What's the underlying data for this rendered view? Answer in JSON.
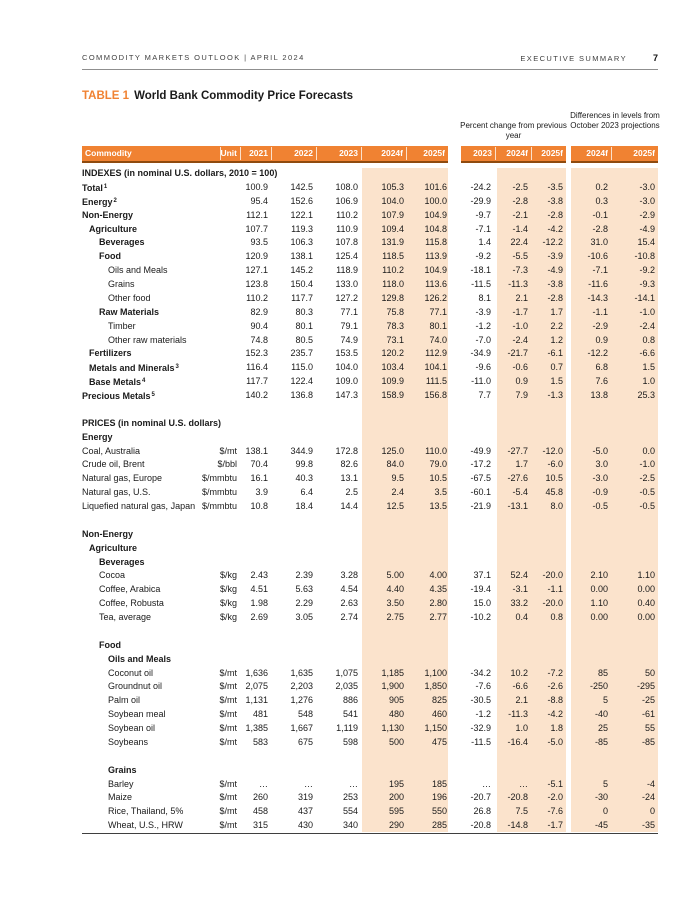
{
  "page_header": {
    "left": "COMMODITY MARKETS OUTLOOK | APRIL 2024",
    "right": "EXECUTIVE SUMMARY",
    "page_number": "7"
  },
  "title": {
    "prefix": "TABLE 1",
    "text": "World Bank Commodity Price Forecasts"
  },
  "column_groups": {
    "percent_change": "Percent change from previous year",
    "differences": "Differences in levels from October 2023 projections"
  },
  "columns": {
    "commodity": "Commodity",
    "unit": "Unit",
    "main_years": [
      "2021",
      "2022",
      "2023",
      "2024f",
      "2025f"
    ],
    "pct_years": [
      "2023",
      "2024f",
      "2025f"
    ],
    "diff_years": [
      "2024f",
      "2025f"
    ]
  },
  "colors": {
    "accent_orange": "#F08232",
    "header_border_brown": "#8F4A0E",
    "forecast_band": "#FBE3CC"
  },
  "table": {
    "column_keys": [
      "y2021",
      "y2022",
      "y2023",
      "y2024f",
      "y2025f",
      "pct2023",
      "pct2024f",
      "pct2025f",
      "diff2024f",
      "diff2025f"
    ],
    "rows": [
      {
        "type": "section",
        "label": "INDEXES (in nominal U.S. dollars, 2010 = 100)",
        "indent": 0,
        "bold": true
      },
      {
        "type": "data",
        "label": "Total",
        "sup": "1",
        "indent": 0,
        "bold": true,
        "values": [
          "100.9",
          "142.5",
          "108.0",
          "105.3",
          "101.6",
          "-24.2",
          "-2.5",
          "-3.5",
          "0.2",
          "-3.0"
        ]
      },
      {
        "type": "data",
        "label": "Energy",
        "sup": "2",
        "indent": 0,
        "bold": true,
        "values": [
          "95.4",
          "152.6",
          "106.9",
          "104.0",
          "100.0",
          "-29.9",
          "-2.8",
          "-3.8",
          "0.3",
          "-3.0"
        ]
      },
      {
        "type": "data",
        "label": "Non-Energy",
        "indent": 0,
        "bold": true,
        "values": [
          "112.1",
          "122.1",
          "110.2",
          "107.9",
          "104.9",
          "-9.7",
          "-2.1",
          "-2.8",
          "-0.1",
          "-2.9"
        ]
      },
      {
        "type": "data",
        "label": "Agriculture",
        "indent": 1,
        "bold": true,
        "values": [
          "107.7",
          "119.3",
          "110.9",
          "109.4",
          "104.8",
          "-7.1",
          "-1.4",
          "-4.2",
          "-2.8",
          "-4.9"
        ]
      },
      {
        "type": "data",
        "label": "Beverages",
        "indent": 2,
        "bold": true,
        "values": [
          "93.5",
          "106.3",
          "107.8",
          "131.9",
          "115.8",
          "1.4",
          "22.4",
          "-12.2",
          "31.0",
          "15.4"
        ]
      },
      {
        "type": "data",
        "label": "Food",
        "indent": 2,
        "bold": true,
        "values": [
          "120.9",
          "138.1",
          "125.4",
          "118.5",
          "113.9",
          "-9.2",
          "-5.5",
          "-3.9",
          "-10.6",
          "-10.8"
        ]
      },
      {
        "type": "data",
        "label": "Oils and Meals",
        "indent": 3,
        "bold": false,
        "values": [
          "127.1",
          "145.2",
          "118.9",
          "110.2",
          "104.9",
          "-18.1",
          "-7.3",
          "-4.9",
          "-7.1",
          "-9.2"
        ]
      },
      {
        "type": "data",
        "label": "Grains",
        "indent": 3,
        "bold": false,
        "values": [
          "123.8",
          "150.4",
          "133.0",
          "118.0",
          "113.6",
          "-11.5",
          "-11.3",
          "-3.8",
          "-11.6",
          "-9.3"
        ]
      },
      {
        "type": "data",
        "label": "Other food",
        "indent": 3,
        "bold": false,
        "values": [
          "110.2",
          "117.7",
          "127.2",
          "129.8",
          "126.2",
          "8.1",
          "2.1",
          "-2.8",
          "-14.3",
          "-14.1"
        ]
      },
      {
        "type": "data",
        "label": "Raw Materials",
        "indent": 2,
        "bold": true,
        "values": [
          "82.9",
          "80.3",
          "77.1",
          "75.8",
          "77.1",
          "-3.9",
          "-1.7",
          "1.7",
          "-1.1",
          "-1.0"
        ]
      },
      {
        "type": "data",
        "label": "Timber",
        "indent": 3,
        "bold": false,
        "values": [
          "90.4",
          "80.1",
          "79.1",
          "78.3",
          "80.1",
          "-1.2",
          "-1.0",
          "2.2",
          "-2.9",
          "-2.4"
        ]
      },
      {
        "type": "data",
        "label": "Other raw materials",
        "indent": 3,
        "bold": false,
        "values": [
          "74.8",
          "80.5",
          "74.9",
          "73.1",
          "74.0",
          "-7.0",
          "-2.4",
          "1.2",
          "0.9",
          "0.8"
        ]
      },
      {
        "type": "data",
        "label": "Fertilizers",
        "indent": 1,
        "bold": true,
        "values": [
          "152.3",
          "235.7",
          "153.5",
          "120.2",
          "112.9",
          "-34.9",
          "-21.7",
          "-6.1",
          "-12.2",
          "-6.6"
        ]
      },
      {
        "type": "data",
        "label": "Metals and Minerals",
        "sup": "3",
        "indent": 1,
        "bold": true,
        "values": [
          "116.4",
          "115.0",
          "104.0",
          "103.4",
          "104.1",
          "-9.6",
          "-0.6",
          "0.7",
          "6.8",
          "1.5"
        ]
      },
      {
        "type": "data",
        "label": "Base Metals",
        "sup": "4",
        "indent": 1,
        "bold": true,
        "values": [
          "117.7",
          "122.4",
          "109.0",
          "109.9",
          "111.5",
          "-11.0",
          "0.9",
          "1.5",
          "7.6",
          "1.0"
        ]
      },
      {
        "type": "data",
        "label": "Precious Metals",
        "sup": "5",
        "indent": 0,
        "bold": true,
        "values": [
          "140.2",
          "136.8",
          "147.3",
          "158.9",
          "156.8",
          "7.7",
          "7.9",
          "-1.3",
          "13.8",
          "25.3"
        ]
      },
      {
        "type": "blank"
      },
      {
        "type": "section",
        "label": "PRICES (in nominal U.S. dollars)",
        "indent": 0,
        "bold": true
      },
      {
        "type": "section",
        "label": "Energy",
        "indent": 0,
        "bold": true
      },
      {
        "type": "data",
        "label": "Coal, Australia",
        "indent": 0,
        "bold": false,
        "unit": "$/mt",
        "values": [
          "138.1",
          "344.9",
          "172.8",
          "125.0",
          "110.0",
          "-49.9",
          "-27.7",
          "-12.0",
          "-5.0",
          "0.0"
        ]
      },
      {
        "type": "data",
        "label": "Crude oil, Brent",
        "indent": 0,
        "bold": false,
        "unit": "$/bbl",
        "values": [
          "70.4",
          "99.8",
          "82.6",
          "84.0",
          "79.0",
          "-17.2",
          "1.7",
          "-6.0",
          "3.0",
          "-1.0"
        ]
      },
      {
        "type": "data",
        "label": "Natural gas, Europe",
        "indent": 0,
        "bold": false,
        "unit": "$/mmbtu",
        "values": [
          "16.1",
          "40.3",
          "13.1",
          "9.5",
          "10.5",
          "-67.5",
          "-27.6",
          "10.5",
          "-3.0",
          "-2.5"
        ]
      },
      {
        "type": "data",
        "label": "Natural gas, U.S.",
        "indent": 0,
        "bold": false,
        "unit": "$/mmbtu",
        "values": [
          "3.9",
          "6.4",
          "2.5",
          "2.4",
          "3.5",
          "-60.1",
          "-5.4",
          "45.8",
          "-0.9",
          "-0.5"
        ]
      },
      {
        "type": "data",
        "label": "Liquefied natural gas, Japan",
        "indent": 0,
        "bold": false,
        "unit": "$/mmbtu",
        "values": [
          "10.8",
          "18.4",
          "14.4",
          "12.5",
          "13.5",
          "-21.9",
          "-13.1",
          "8.0",
          "-0.5",
          "-0.5"
        ]
      },
      {
        "type": "blank"
      },
      {
        "type": "section",
        "label": "Non-Energy",
        "indent": 0,
        "bold": true
      },
      {
        "type": "section",
        "label": "Agriculture",
        "indent": 1,
        "bold": true
      },
      {
        "type": "section",
        "label": "Beverages",
        "indent": 2,
        "bold": true
      },
      {
        "type": "data",
        "label": "Cocoa",
        "indent": 2,
        "bold": false,
        "unit": "$/kg",
        "values": [
          "2.43",
          "2.39",
          "3.28",
          "5.00",
          "4.00",
          "37.1",
          "52.4",
          "-20.0",
          "2.10",
          "1.10"
        ]
      },
      {
        "type": "data",
        "label": "Coffee, Arabica",
        "indent": 2,
        "bold": false,
        "unit": "$/kg",
        "values": [
          "4.51",
          "5.63",
          "4.54",
          "4.40",
          "4.35",
          "-19.4",
          "-3.1",
          "-1.1",
          "0.00",
          "0.00"
        ]
      },
      {
        "type": "data",
        "label": "Coffee, Robusta",
        "indent": 2,
        "bold": false,
        "unit": "$/kg",
        "values": [
          "1.98",
          "2.29",
          "2.63",
          "3.50",
          "2.80",
          "15.0",
          "33.2",
          "-20.0",
          "1.10",
          "0.40"
        ]
      },
      {
        "type": "data",
        "label": "Tea, average",
        "indent": 2,
        "bold": false,
        "unit": "$/kg",
        "values": [
          "2.69",
          "3.05",
          "2.74",
          "2.75",
          "2.77",
          "-10.2",
          "0.4",
          "0.8",
          "0.00",
          "0.00"
        ]
      },
      {
        "type": "blank"
      },
      {
        "type": "section",
        "label": "Food",
        "indent": 2,
        "bold": true
      },
      {
        "type": "section",
        "label": "Oils and Meals",
        "indent": 3,
        "bold": true
      },
      {
        "type": "data",
        "label": "Coconut oil",
        "indent": 3,
        "bold": false,
        "unit": "$/mt",
        "values": [
          "1,636",
          "1,635",
          "1,075",
          "1,185",
          "1,100",
          "-34.2",
          "10.2",
          "-7.2",
          "85",
          "50"
        ]
      },
      {
        "type": "data",
        "label": "Groundnut oil",
        "indent": 3,
        "bold": false,
        "unit": "$/mt",
        "values": [
          "2,075",
          "2,203",
          "2,035",
          "1,900",
          "1,850",
          "-7.6",
          "-6.6",
          "-2.6",
          "-250",
          "-295"
        ]
      },
      {
        "type": "data",
        "label": "Palm oil",
        "indent": 3,
        "bold": false,
        "unit": "$/mt",
        "values": [
          "1,131",
          "1,276",
          "886",
          "905",
          "825",
          "-30.5",
          "2.1",
          "-8.8",
          "5",
          "-25"
        ]
      },
      {
        "type": "data",
        "label": "Soybean meal",
        "indent": 3,
        "bold": false,
        "unit": "$/mt",
        "values": [
          "481",
          "548",
          "541",
          "480",
          "460",
          "-1.2",
          "-11.3",
          "-4.2",
          "-40",
          "-61"
        ]
      },
      {
        "type": "data",
        "label": "Soybean oil",
        "indent": 3,
        "bold": false,
        "unit": "$/mt",
        "values": [
          "1,385",
          "1,667",
          "1,119",
          "1,130",
          "1,150",
          "-32.9",
          "1.0",
          "1.8",
          "25",
          "55"
        ]
      },
      {
        "type": "data",
        "label": "Soybeans",
        "indent": 3,
        "bold": false,
        "unit": "$/mt",
        "values": [
          "583",
          "675",
          "598",
          "500",
          "475",
          "-11.5",
          "-16.4",
          "-5.0",
          "-85",
          "-85"
        ]
      },
      {
        "type": "blank"
      },
      {
        "type": "section",
        "label": "Grains",
        "indent": 3,
        "bold": true
      },
      {
        "type": "data",
        "label": "Barley",
        "indent": 3,
        "bold": false,
        "unit": "$/mt",
        "values": [
          "…",
          "…",
          "…",
          "195",
          "185",
          "…",
          "…",
          "-5.1",
          "5",
          "-4"
        ]
      },
      {
        "type": "data",
        "label": "Maize",
        "indent": 3,
        "bold": false,
        "unit": "$/mt",
        "values": [
          "260",
          "319",
          "253",
          "200",
          "196",
          "-20.7",
          "-20.8",
          "-2.0",
          "-30",
          "-24"
        ]
      },
      {
        "type": "data",
        "label": "Rice, Thailand, 5%",
        "indent": 3,
        "bold": false,
        "unit": "$/mt",
        "values": [
          "458",
          "437",
          "554",
          "595",
          "550",
          "26.8",
          "7.5",
          "-7.6",
          "0",
          "0"
        ]
      },
      {
        "type": "data",
        "label": "Wheat, U.S., HRW",
        "indent": 3,
        "bold": false,
        "unit": "$/mt",
        "values": [
          "315",
          "430",
          "340",
          "290",
          "285",
          "-20.8",
          "-14.8",
          "-1.7",
          "-45",
          "-35"
        ]
      }
    ]
  }
}
